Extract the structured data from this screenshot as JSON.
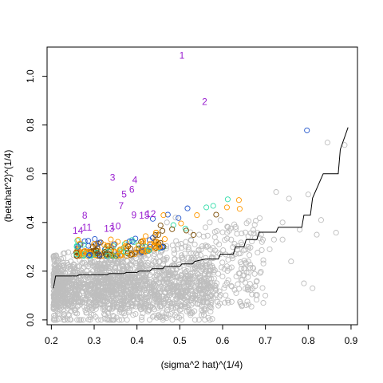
{
  "chart_data": {
    "type": "scatter",
    "xlabel": "(sigma^2 hat)^(1/4)",
    "ylabel": "(betahat^2)^(1/4)",
    "xlim": [
      0.19,
      0.915
    ],
    "ylim": [
      -0.02,
      1.12
    ],
    "xticks": [
      "0.2",
      "0.3",
      "0.4",
      "0.5",
      "0.6",
      "0.7",
      "0.8",
      "0.9"
    ],
    "yticks": [
      "0.0",
      "0.2",
      "0.4",
      "0.6",
      "0.8",
      "1.0"
    ],
    "colors": {
      "background_points": "#bebebe",
      "step_line": "#000000",
      "labels": "#9a20d0",
      "highlight": [
        "#2255cc",
        "#33ddaa",
        "#ff9900",
        "#7a4a00"
      ]
    },
    "labeled_points": [
      {
        "label": "1",
        "x": 0.505,
        "y": 1.085
      },
      {
        "label": "2",
        "x": 0.558,
        "y": 0.895
      },
      {
        "label": "3",
        "x": 0.343,
        "y": 0.585
      },
      {
        "label": "4",
        "x": 0.395,
        "y": 0.575
      },
      {
        "label": "5",
        "x": 0.37,
        "y": 0.515
      },
      {
        "label": "6",
        "x": 0.388,
        "y": 0.535
      },
      {
        "label": "7",
        "x": 0.363,
        "y": 0.468
      },
      {
        "label": "8",
        "x": 0.278,
        "y": 0.428
      },
      {
        "label": "9",
        "x": 0.393,
        "y": 0.43
      },
      {
        "label": "10",
        "x": 0.35,
        "y": 0.385
      },
      {
        "label": "11",
        "x": 0.283,
        "y": 0.38
      },
      {
        "label": "12",
        "x": 0.432,
        "y": 0.435
      },
      {
        "label": "13",
        "x": 0.335,
        "y": 0.375
      },
      {
        "label": "14",
        "x": 0.262,
        "y": 0.367
      },
      {
        "label": "15",
        "x": 0.417,
        "y": 0.428
      }
    ],
    "step_line": [
      [
        0.205,
        0.13
      ],
      [
        0.21,
        0.18
      ],
      [
        0.26,
        0.18
      ],
      [
        0.265,
        0.185
      ],
      [
        0.33,
        0.185
      ],
      [
        0.335,
        0.19
      ],
      [
        0.37,
        0.19
      ],
      [
        0.375,
        0.195
      ],
      [
        0.4,
        0.195
      ],
      [
        0.405,
        0.2
      ],
      [
        0.43,
        0.2
      ],
      [
        0.435,
        0.21
      ],
      [
        0.46,
        0.21
      ],
      [
        0.465,
        0.22
      ],
      [
        0.5,
        0.22
      ],
      [
        0.505,
        0.23
      ],
      [
        0.53,
        0.23
      ],
      [
        0.535,
        0.24
      ],
      [
        0.56,
        0.25
      ],
      [
        0.59,
        0.25
      ],
      [
        0.595,
        0.27
      ],
      [
        0.625,
        0.27
      ],
      [
        0.63,
        0.3
      ],
      [
        0.65,
        0.3
      ],
      [
        0.655,
        0.33
      ],
      [
        0.68,
        0.33
      ],
      [
        0.685,
        0.36
      ],
      [
        0.725,
        0.36
      ],
      [
        0.73,
        0.38
      ],
      [
        0.785,
        0.38
      ],
      [
        0.79,
        0.43
      ],
      [
        0.805,
        0.43
      ],
      [
        0.81,
        0.5
      ],
      [
        0.83,
        0.58
      ],
      [
        0.835,
        0.6
      ],
      [
        0.87,
        0.6
      ],
      [
        0.875,
        0.7
      ],
      [
        0.893,
        0.79
      ]
    ],
    "grey_points": [
      [
        0.885,
        0.718
      ],
      [
        0.845,
        0.728
      ],
      [
        0.865,
        0.358
      ],
      [
        0.8,
        0.515
      ],
      [
        0.725,
        0.525
      ],
      [
        0.755,
        0.498
      ],
      [
        0.81,
        0.13
      ],
      [
        0.79,
        0.15
      ],
      [
        0.7,
        0.1
      ],
      [
        0.74,
        0.33
      ],
      [
        0.71,
        0.29
      ],
      [
        0.675,
        0.39
      ],
      [
        0.66,
        0.24
      ],
      [
        0.64,
        0.19
      ],
      [
        0.62,
        0.14
      ],
      [
        0.595,
        0.41
      ],
      [
        0.6,
        0.36
      ],
      [
        0.585,
        0.32
      ],
      [
        0.57,
        0.4
      ],
      [
        0.56,
        0.38
      ],
      [
        0.545,
        0.35
      ],
      [
        0.545,
        0.13
      ],
      [
        0.53,
        0.09
      ],
      [
        0.52,
        0.06
      ],
      [
        0.5,
        0.04
      ],
      [
        0.49,
        0.42
      ],
      [
        0.47,
        0.4
      ],
      [
        0.48,
        0.05
      ],
      [
        0.46,
        0.03
      ],
      [
        0.45,
        0.02
      ],
      [
        0.74,
        0.4
      ],
      [
        0.72,
        0.33
      ],
      [
        0.69,
        0.35
      ],
      [
        0.66,
        0.3
      ],
      [
        0.65,
        0.21
      ],
      [
        0.63,
        0.27
      ],
      [
        0.62,
        0.33
      ],
      [
        0.61,
        0.22
      ],
      [
        0.58,
        0.17
      ],
      [
        0.57,
        0.2
      ],
      [
        0.83,
        0.41
      ],
      [
        0.78,
        0.37
      ],
      [
        0.82,
        0.35
      ],
      [
        0.76,
        0.24
      ],
      [
        0.68,
        0.16
      ],
      [
        0.56,
        0.1
      ],
      [
        0.55,
        0.29
      ],
      [
        0.535,
        0.31
      ],
      [
        0.525,
        0.36
      ],
      [
        0.51,
        0.14
      ]
    ],
    "highlight_points": [
      {
        "x": 0.797,
        "y": 0.778,
        "c": 0
      },
      {
        "x": 0.612,
        "y": 0.495,
        "c": 1
      },
      {
        "x": 0.638,
        "y": 0.492,
        "c": 2
      },
      {
        "x": 0.578,
        "y": 0.468,
        "c": 1
      },
      {
        "x": 0.562,
        "y": 0.462,
        "c": 1
      },
      {
        "x": 0.61,
        "y": 0.462,
        "c": 2
      },
      {
        "x": 0.64,
        "y": 0.456,
        "c": 2
      },
      {
        "x": 0.518,
        "y": 0.458,
        "c": 0
      },
      {
        "x": 0.472,
        "y": 0.432,
        "c": 0
      },
      {
        "x": 0.462,
        "y": 0.43,
        "c": 2
      },
      {
        "x": 0.54,
        "y": 0.43,
        "c": 2
      },
      {
        "x": 0.585,
        "y": 0.432,
        "c": 3
      },
      {
        "x": 0.497,
        "y": 0.418,
        "c": 0
      },
      {
        "x": 0.503,
        "y": 0.396,
        "c": 2
      },
      {
        "x": 0.485,
        "y": 0.389,
        "c": 1
      },
      {
        "x": 0.513,
        "y": 0.375,
        "c": 1
      },
      {
        "x": 0.437,
        "y": 0.415,
        "c": 0
      },
      {
        "x": 0.455,
        "y": 0.388,
        "c": 3
      },
      {
        "x": 0.482,
        "y": 0.372,
        "c": 3
      },
      {
        "x": 0.515,
        "y": 0.367,
        "c": 3
      },
      {
        "x": 0.532,
        "y": 0.349,
        "c": 3
      },
      {
        "x": 0.445,
        "y": 0.358,
        "c": 2
      }
    ]
  }
}
